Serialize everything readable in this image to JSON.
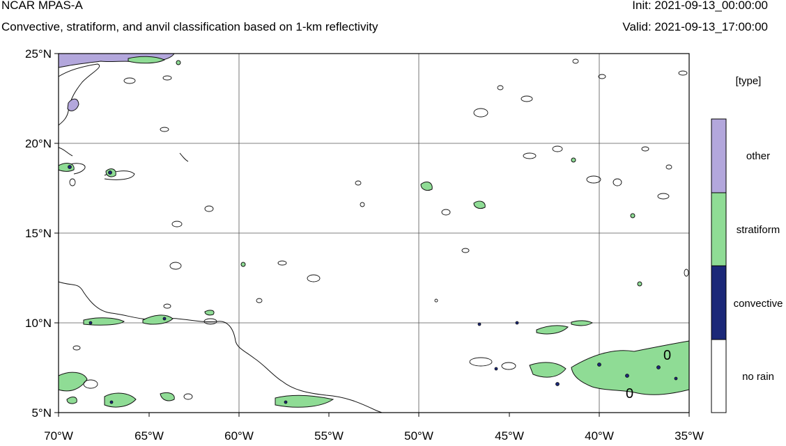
{
  "header": {
    "title": "NCAR MPAS-A",
    "subtitle": "Convective, stratiform, and anvil classification based on 1-km reflectivity",
    "init": "Init: 2021-09-13_00:00:00",
    "valid": "Valid: 2021-09-13_17:00:00"
  },
  "map": {
    "lon_range": [
      -70,
      -35
    ],
    "lat_range": [
      5,
      25
    ],
    "lon_ticks": [
      "70°W",
      "65°W",
      "60°W",
      "55°W",
      "50°W",
      "45°W",
      "40°W",
      "35°W"
    ],
    "lat_ticks": [
      "25°N",
      "20°N",
      "15°N",
      "10°N",
      "5°N"
    ],
    "grid": true,
    "contour_label": "0"
  },
  "legend": {
    "title": "[type]",
    "categories": [
      {
        "label": "other",
        "color": "#b3a7dc"
      },
      {
        "label": "stratiform",
        "color": "#8fdc95"
      },
      {
        "label": "convective",
        "color": "#1b2878"
      },
      {
        "label": "no rain",
        "color": "#ffffff"
      }
    ]
  }
}
